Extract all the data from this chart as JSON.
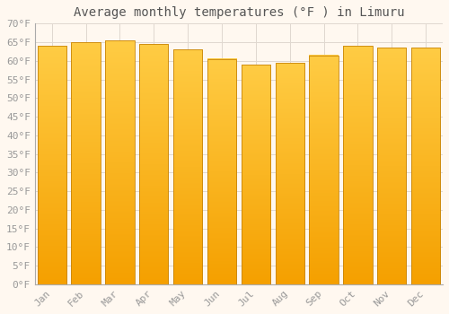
{
  "title": "Average monthly temperatures (°F ) in Limuru",
  "months": [
    "Jan",
    "Feb",
    "Mar",
    "Apr",
    "May",
    "Jun",
    "Jul",
    "Aug",
    "Sep",
    "Oct",
    "Nov",
    "Dec"
  ],
  "values": [
    64,
    65,
    65.5,
    64.5,
    63,
    60.5,
    59,
    59.5,
    61.5,
    64,
    63.5,
    63.5
  ],
  "bar_color_top": "#FFCC44",
  "bar_color_bottom": "#F5A000",
  "bar_edge_color": "#C8850A",
  "background_color": "#FFF8F0",
  "plot_bg_color": "#FFF8F0",
  "grid_color": "#E0D8D0",
  "ylim": [
    0,
    70
  ],
  "yticks": [
    0,
    5,
    10,
    15,
    20,
    25,
    30,
    35,
    40,
    45,
    50,
    55,
    60,
    65,
    70
  ],
  "ytick_labels": [
    "0°F",
    "5°F",
    "10°F",
    "15°F",
    "20°F",
    "25°F",
    "30°F",
    "35°F",
    "40°F",
    "45°F",
    "50°F",
    "55°F",
    "60°F",
    "65°F",
    "70°F"
  ],
  "font_family": "monospace",
  "title_fontsize": 10,
  "tick_fontsize": 8,
  "tick_color": "#999999",
  "bar_width": 0.85
}
